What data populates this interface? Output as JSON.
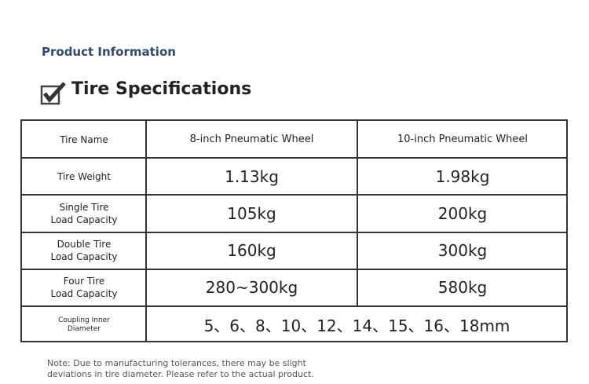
{
  "header": {
    "title": "Product Information"
  },
  "section": {
    "title": "Tire Specifications"
  },
  "table": {
    "columns": [
      "Tire Name",
      "8-inch Pneumatic Wheel",
      "10-inch Pneumatic Wheel"
    ],
    "rows": [
      {
        "label": [
          "Tire Weight"
        ],
        "values": [
          "1.13kg",
          "1.98kg"
        ]
      },
      {
        "label": [
          "Single Tire",
          "Load Capacity"
        ],
        "values": [
          "105kg",
          "200kg"
        ]
      },
      {
        "label": [
          "Double Tire",
          "Load Capacity"
        ],
        "values": [
          "160kg",
          "300kg"
        ]
      },
      {
        "label": [
          "Four Tire",
          "Load Capacity"
        ],
        "values": [
          "280~300kg",
          "580kg"
        ]
      },
      {
        "label": [
          "Coupling Inner",
          "Diameter"
        ],
        "values": [
          "5、6、8、10、12、14、15、16、18mm"
        ]
      }
    ]
  },
  "note": [
    "Note: Due to manufacturing tolerances, there may be slight",
    "deviations in tire diameter. Please refer to the actual product."
  ]
}
